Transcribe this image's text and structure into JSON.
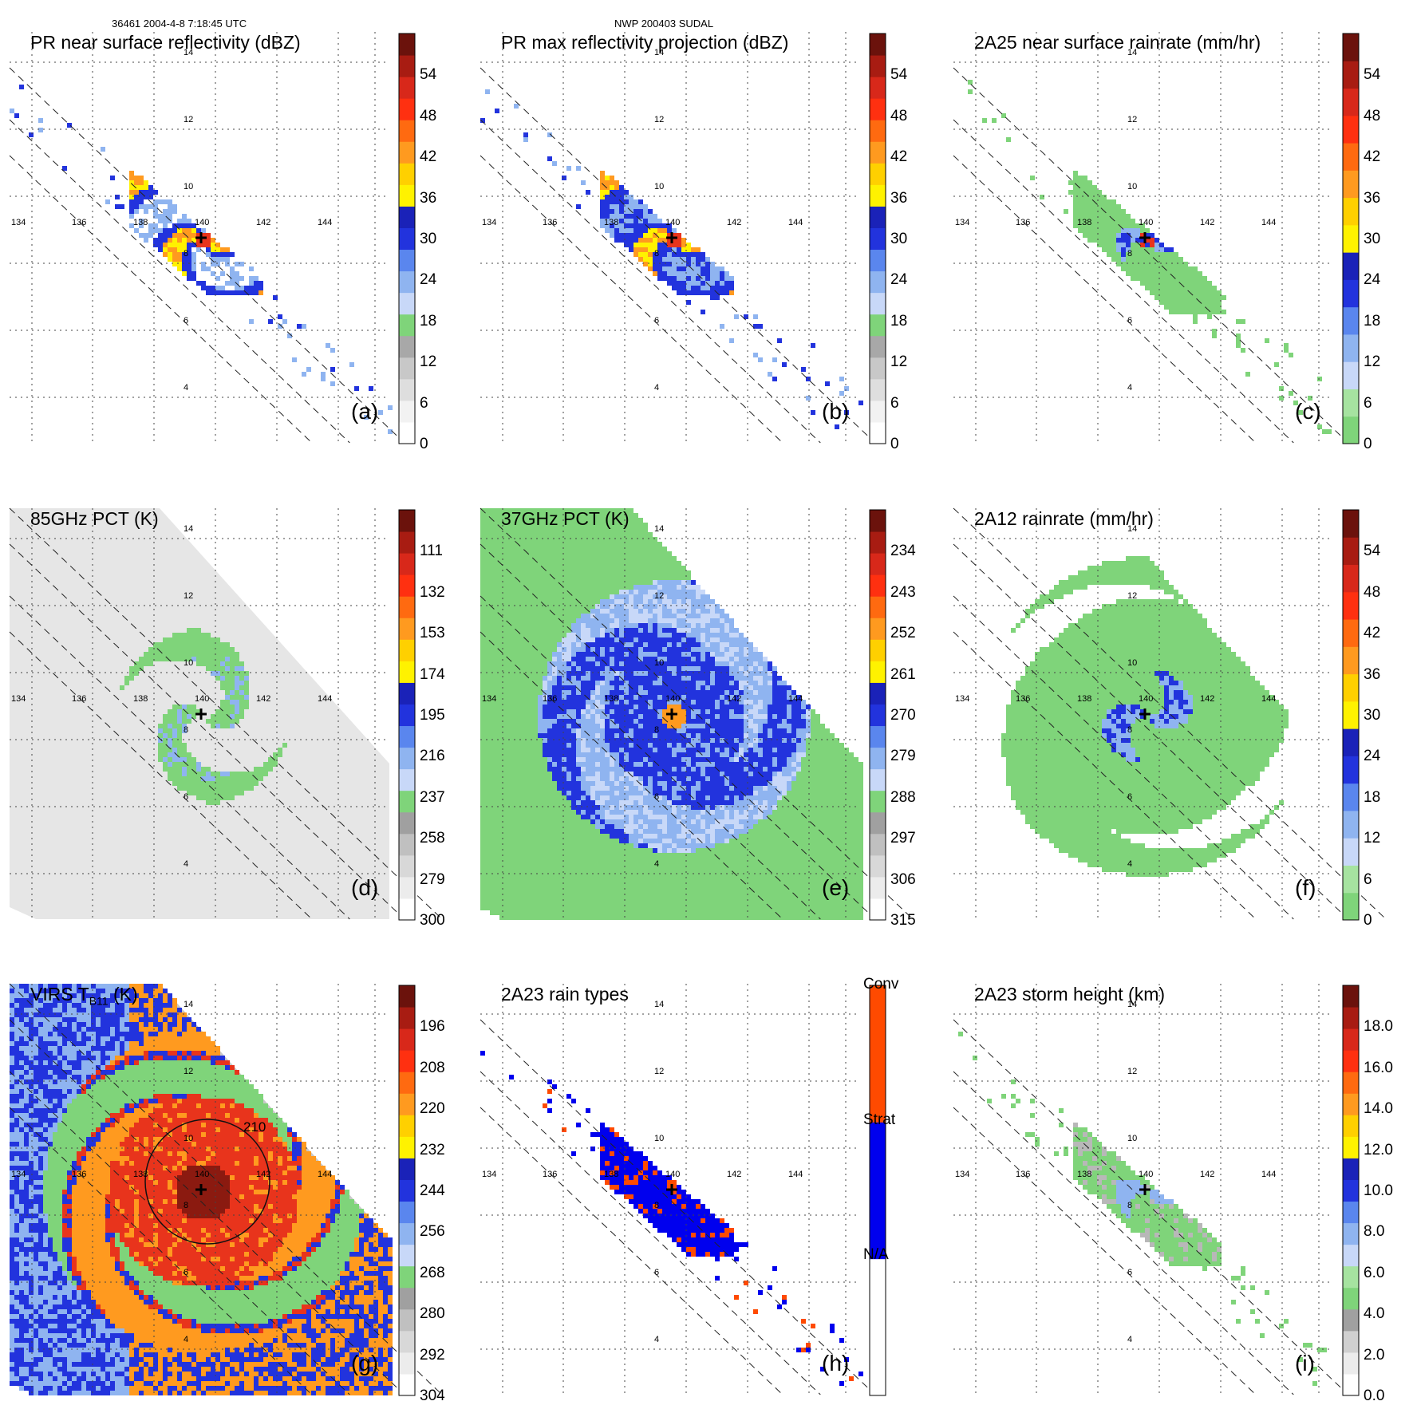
{
  "header": {
    "orbit_info": "36461 2004-4-8 7:18:45 UTC",
    "storm_info": "NWP 200403 SUDAL"
  },
  "grid": {
    "lat_labels": [
      "14",
      "12",
      "10",
      "8",
      "6",
      "4"
    ],
    "lon_labels": [
      "134",
      "136",
      "138",
      "140",
      "142",
      "144"
    ]
  },
  "colors": {
    "green": "#7fd47a",
    "blue": "#2233dd",
    "lightblue": "#8fb4f0",
    "yellow": "#fff200",
    "orange": "#ff9a1f",
    "red": "#e8341c",
    "darkred": "#8b1a10",
    "gray": "#b8b8b8"
  },
  "panels": [
    {
      "id": "a",
      "letter": "(a)",
      "title": "PR near surface reflectivity (dBZ)",
      "swath": "narrow",
      "fill": "reflectivity",
      "colorbar": {
        "labels": [
          "54",
          "48",
          "42",
          "36",
          "30",
          "24",
          "18",
          "12",
          "6",
          "0"
        ],
        "colors": [
          "#ffffff",
          "#f2f2f2",
          "#dedede",
          "#c8c8c8",
          "#a8a8a8",
          "#7fd47a",
          "#c8d8f8",
          "#8fb4f0",
          "#5a86ee",
          "#2233dd",
          "#1a22b8",
          "#fff200",
          "#ffd000",
          "#ff9a1f",
          "#ff6a10",
          "#ff3010",
          "#d8281a",
          "#a81c12",
          "#6b120c"
        ]
      }
    },
    {
      "id": "b",
      "letter": "(b)",
      "title": "PR max reflectivity projection (dBZ)",
      "swath": "narrow",
      "fill": "maxrefl",
      "colorbar": {
        "labels": [
          "54",
          "48",
          "42",
          "36",
          "30",
          "24",
          "18",
          "12",
          "6",
          "0"
        ],
        "colors": [
          "#ffffff",
          "#f2f2f2",
          "#dedede",
          "#c8c8c8",
          "#a8a8a8",
          "#7fd47a",
          "#c8d8f8",
          "#8fb4f0",
          "#5a86ee",
          "#2233dd",
          "#1a22b8",
          "#fff200",
          "#ffd000",
          "#ff9a1f",
          "#ff6a10",
          "#ff3010",
          "#d8281a",
          "#a81c12",
          "#6b120c"
        ]
      }
    },
    {
      "id": "c",
      "letter": "(c)",
      "title": "2A25 near surface rainrate (mm/hr)",
      "swath": "narrow",
      "fill": "rainrate",
      "colorbar": {
        "labels": [
          "54",
          "48",
          "42",
          "36",
          "30",
          "24",
          "18",
          "12",
          "6",
          "0"
        ],
        "colors": [
          "#7fd47a",
          "#a6e3a0",
          "#c8d8f8",
          "#8fb4f0",
          "#5a86ee",
          "#2233dd",
          "#1a22b8",
          "#fff200",
          "#ffd000",
          "#ff9a1f",
          "#ff6a10",
          "#ff3010",
          "#d8281a",
          "#a81c12",
          "#6b120c"
        ]
      }
    },
    {
      "id": "d",
      "letter": "(d)",
      "title": "85GHz PCT (K)",
      "swath": "wide",
      "fill": "pct85",
      "colorbar": {
        "labels": [
          "111",
          "132",
          "153",
          "174",
          "195",
          "216",
          "237",
          "258",
          "279",
          "300"
        ],
        "colors": [
          "#ffffff",
          "#ececec",
          "#d8d8d8",
          "#c0c0c0",
          "#a0a0a0",
          "#7fd47a",
          "#c8d8f8",
          "#8fb4f0",
          "#5a86ee",
          "#2233dd",
          "#1a22b8",
          "#fff200",
          "#ffd000",
          "#ff9a1f",
          "#ff6a10",
          "#ff3010",
          "#d8281a",
          "#a81c12",
          "#6b120c"
        ]
      }
    },
    {
      "id": "e",
      "letter": "(e)",
      "title": "37GHz PCT (K)",
      "swath": "wide",
      "fill": "pct37",
      "colorbar": {
        "labels": [
          "234",
          "243",
          "252",
          "261",
          "270",
          "279",
          "288",
          "297",
          "306",
          "315"
        ],
        "colors": [
          "#ffffff",
          "#ececec",
          "#d8d8d8",
          "#c0c0c0",
          "#a0a0a0",
          "#7fd47a",
          "#c8d8f8",
          "#8fb4f0",
          "#5a86ee",
          "#2233dd",
          "#1a22b8",
          "#fff200",
          "#ffd000",
          "#ff9a1f",
          "#ff6a10",
          "#ff3010",
          "#d8281a",
          "#a81c12",
          "#6b120c"
        ]
      }
    },
    {
      "id": "f",
      "letter": "(f)",
      "title": "2A12 rainrate (mm/hr)",
      "swath": "wide",
      "fill": "tmi_rain",
      "colorbar": {
        "labels": [
          "54",
          "48",
          "42",
          "36",
          "30",
          "24",
          "18",
          "12",
          "6",
          "0"
        ],
        "colors": [
          "#7fd47a",
          "#a6e3a0",
          "#c8d8f8",
          "#8fb4f0",
          "#5a86ee",
          "#2233dd",
          "#1a22b8",
          "#fff200",
          "#ffd000",
          "#ff9a1f",
          "#ff6a10",
          "#ff3010",
          "#d8281a",
          "#a81c12",
          "#6b120c"
        ]
      }
    },
    {
      "id": "g",
      "letter": "(g)",
      "title": "VIRS T",
      "title_sub": "B11",
      "title_suffix": " (K)",
      "swath": "wide",
      "fill": "virs",
      "contour_label": "210",
      "colorbar": {
        "labels": [
          "196",
          "208",
          "220",
          "232",
          "244",
          "256",
          "268",
          "280",
          "292",
          "304"
        ],
        "colors": [
          "#ffffff",
          "#ececec",
          "#d8d8d8",
          "#c0c0c0",
          "#a0a0a0",
          "#7fd47a",
          "#c8d8f8",
          "#8fb4f0",
          "#5a86ee",
          "#2233dd",
          "#1a22b8",
          "#fff200",
          "#ffd000",
          "#ff9a1f",
          "#ff6a10",
          "#ff3010",
          "#d8281a",
          "#a81c12",
          "#6b120c"
        ]
      }
    },
    {
      "id": "h",
      "letter": "(h)",
      "title": "2A23 rain types",
      "swath": "narrow",
      "fill": "raintype",
      "colorbar": {
        "labels": [
          "Conv",
          "Strat",
          "N/A"
        ],
        "categorical": true,
        "colors": [
          "#ffffff",
          "#0000ee",
          "#ff4a00"
        ]
      }
    },
    {
      "id": "i",
      "letter": "(i)",
      "title": "2A23 storm height (km)",
      "swath": "narrow",
      "fill": "height",
      "colorbar": {
        "labels": [
          "18.0",
          "16.0",
          "14.0",
          "12.0",
          "10.0",
          "8.0",
          "6.0",
          "4.0",
          "2.0",
          "0.0"
        ],
        "colors": [
          "#ffffff",
          "#ececec",
          "#d0d0d0",
          "#a0a0a0",
          "#7fd47a",
          "#a6e3a0",
          "#c8d8f8",
          "#8fb4f0",
          "#5a86ee",
          "#2233dd",
          "#1a22b8",
          "#fff200",
          "#ffd000",
          "#ff9a1f",
          "#ff6a10",
          "#ff3010",
          "#d8281a",
          "#a81c12",
          "#6b120c"
        ]
      }
    }
  ]
}
